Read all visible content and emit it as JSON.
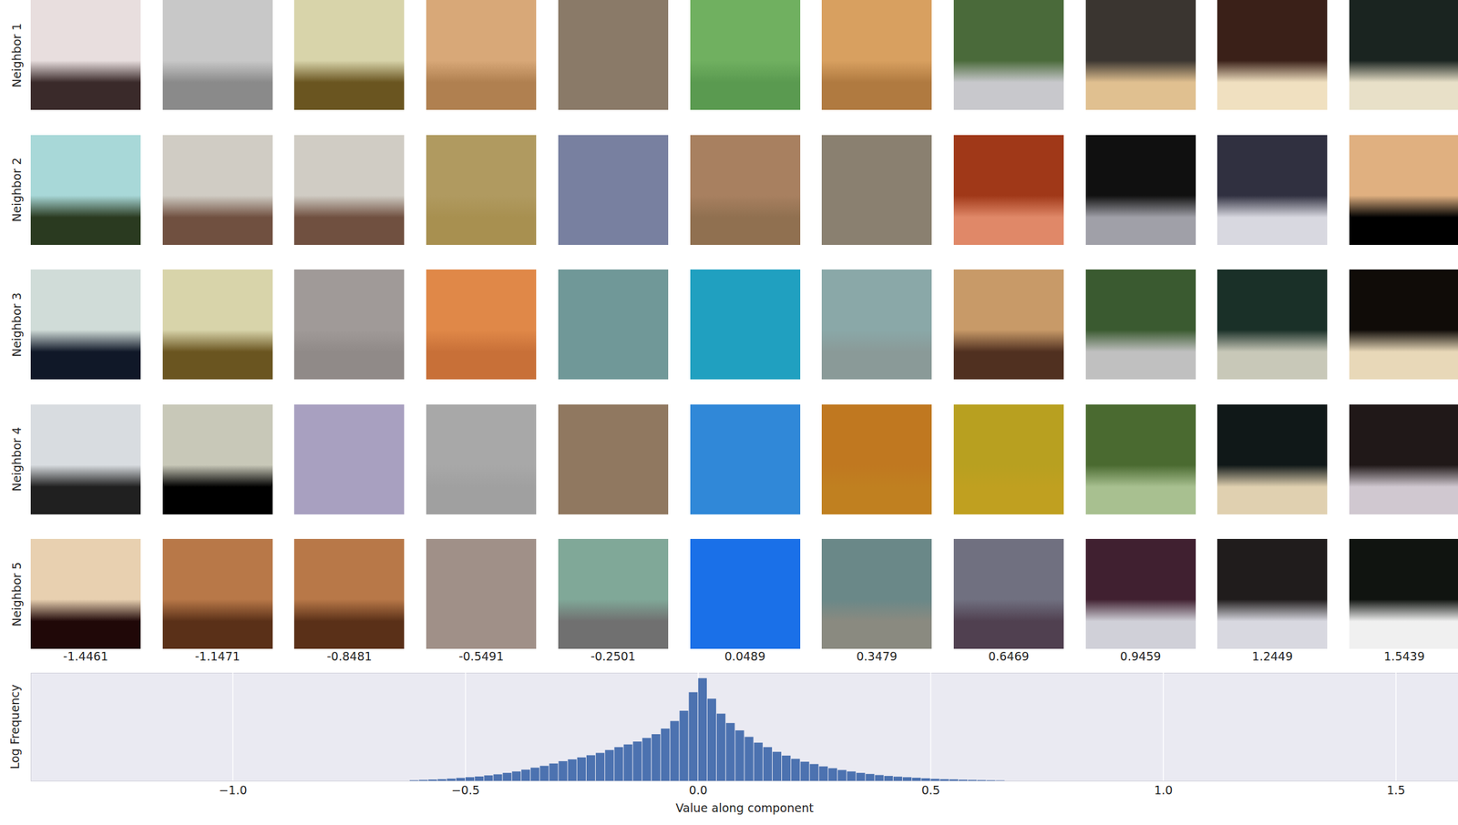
{
  "chart_data": {
    "type": "histogram",
    "xlabel": "Value along component",
    "ylabel": "Log Frequency",
    "bins": [
      -0.62,
      -0.6,
      -0.58,
      -0.56,
      -0.54,
      -0.52,
      -0.5,
      -0.48,
      -0.46,
      -0.44,
      -0.42,
      -0.4,
      -0.38,
      -0.36,
      -0.34,
      -0.32,
      -0.3,
      -0.28,
      -0.26,
      -0.24,
      -0.22,
      -0.2,
      -0.18,
      -0.16,
      -0.14,
      -0.12,
      -0.1,
      -0.08,
      -0.06,
      -0.04,
      -0.02,
      0,
      0.02,
      0.04,
      0.06,
      0.08,
      0.1,
      0.12,
      0.14,
      0.16,
      0.18,
      0.2,
      0.22,
      0.24,
      0.26,
      0.28,
      0.3,
      0.32,
      0.34,
      0.36,
      0.38,
      0.4,
      0.42,
      0.44,
      0.46,
      0.48,
      0.5,
      0.52,
      0.54,
      0.56,
      0.58,
      0.6,
      0.62,
      0.64,
      0.66
    ],
    "values": [
      0.03,
      0.05,
      0.07,
      0.09,
      0.12,
      0.16,
      0.2,
      0.24,
      0.3,
      0.36,
      0.44,
      0.52,
      0.62,
      0.73,
      0.83,
      0.96,
      1.09,
      1.19,
      1.3,
      1.42,
      1.55,
      1.71,
      1.87,
      2.02,
      2.18,
      2.38,
      2.59,
      2.9,
      3.32,
      3.89,
      4.92,
      5.7,
      4.56,
      3.73,
      3.21,
      2.8,
      2.44,
      2.12,
      1.87,
      1.61,
      1.4,
      1.22,
      1.06,
      0.93,
      0.8,
      0.7,
      0.6,
      0.52,
      0.44,
      0.38,
      0.32,
      0.27,
      0.23,
      0.2,
      0.17,
      0.14,
      0.11,
      0.09,
      0.08,
      0.06,
      0.05,
      0.04,
      0.03,
      0.02
    ],
    "color": "#4c72b0",
    "xlim": [
      -1.434,
      1.634
    ],
    "xticks": [
      {
        "value": -1,
        "label": "−1.0"
      },
      {
        "value": -0.5,
        "label": "−0.5"
      },
      {
        "value": 0,
        "label": "0.0"
      },
      {
        "value": 0.5,
        "label": "0.5"
      },
      {
        "value": 1,
        "label": "1.0"
      },
      {
        "value": 1.5,
        "label": "1.5"
      }
    ],
    "ylim": [
      0,
      6
    ],
    "tick_labels": "x",
    "grid": true
  },
  "patch_grid": {
    "row_labels": [
      "Neighbor 1",
      "Neighbor 2",
      "Neighbor 3",
      "Neighbor 4",
      "Neighbor 5"
    ],
    "column_values": [
      -1.4461,
      -1.1471,
      -0.8481,
      -0.5491,
      -0.2501,
      0.0489,
      0.3479,
      0.6469,
      0.9459,
      1.2449,
      1.5439
    ],
    "patches": [
      [
        {
          "top": "#e8dede",
          "bottom": "#3a2a2a"
        },
        {
          "top": "#c8c8c8",
          "bottom": "#8a8a8a"
        },
        {
          "top": "#d8d4aa",
          "bottom": "#6a5520"
        },
        {
          "top": "#d8a878",
          "bottom": "#b08050"
        },
        {
          "top": "#8a7a68",
          "bottom": "#8a7a68"
        },
        {
          "top": "#70b060",
          "bottom": "#5a9a50"
        },
        {
          "top": "#d8a060",
          "bottom": "#b07a40"
        },
        {
          "top": "#4a6a3a",
          "bottom": "#c8c8cc"
        },
        {
          "top": "#3a3530",
          "bottom": "#e0c090"
        },
        {
          "top": "#3a2018",
          "bottom": "#f0e0c0"
        },
        {
          "top": "#1a2420",
          "bottom": "#e8e0c8"
        }
      ],
      [
        {
          "top": "#a8d8d8",
          "bottom": "#2a3a20"
        },
        {
          "top": "#d0ccc4",
          "bottom": "#705040"
        },
        {
          "top": "#d0ccc4",
          "bottom": "#705040"
        },
        {
          "top": "#b09a60",
          "bottom": "#a89050"
        },
        {
          "top": "#7880a0",
          "bottom": "#7880a0"
        },
        {
          "top": "#a88060",
          "bottom": "#907050"
        },
        {
          "top": "#8a8070",
          "bottom": "#8a8070"
        },
        {
          "top": "#a03818",
          "bottom": "#e08868"
        },
        {
          "top": "#101010",
          "bottom": "#a0a0a8"
        },
        {
          "top": "#303040",
          "bottom": "#d8d8e0"
        },
        {
          "top": "#e0b080",
          "bottom": "#000000"
        }
      ],
      [
        {
          "top": "#d0dcd8",
          "bottom": "#101828"
        },
        {
          "top": "#d8d4aa",
          "bottom": "#6a5520"
        },
        {
          "top": "#a09a98",
          "bottom": "#908a88"
        },
        {
          "top": "#e08848",
          "bottom": "#c87038"
        },
        {
          "top": "#709898",
          "bottom": "#709898"
        },
        {
          "top": "#20a0c0",
          "bottom": "#20a0c0"
        },
        {
          "top": "#8aa8a8",
          "bottom": "#8a9a98"
        },
        {
          "top": "#c89a68",
          "bottom": "#503020"
        },
        {
          "top": "#3a5a30",
          "bottom": "#c0c0c0"
        },
        {
          "top": "#1a3028",
          "bottom": "#c8c8b8"
        },
        {
          "top": "#100c08",
          "bottom": "#e8d8b8"
        }
      ],
      [
        {
          "top": "#d8dce0",
          "bottom": "#202020"
        },
        {
          "top": "#c8c8b8",
          "bottom": "#000000"
        },
        {
          "top": "#a8a0c0",
          "bottom": "#a8a0c0"
        },
        {
          "top": "#a8a8a8",
          "bottom": "#a0a0a0"
        },
        {
          "top": "#907860",
          "bottom": "#907860"
        },
        {
          "top": "#3088d8",
          "bottom": "#3088d8"
        },
        {
          "top": "#c07820",
          "bottom": "#c08020"
        },
        {
          "top": "#b8a020",
          "bottom": "#c0a020"
        },
        {
          "top": "#4a6a30",
          "bottom": "#a8c090"
        },
        {
          "top": "#101818",
          "bottom": "#e0d0b0"
        },
        {
          "top": "#201818",
          "bottom": "#d0c8d0"
        }
      ],
      [
        {
          "top": "#e8d0b0",
          "bottom": "#200808"
        },
        {
          "top": "#b87848",
          "bottom": "#5a3018"
        },
        {
          "top": "#b87848",
          "bottom": "#5a3018"
        },
        {
          "top": "#a09088",
          "bottom": "#a09088"
        },
        {
          "top": "#80a898",
          "bottom": "#707070"
        },
        {
          "top": "#1a70e8",
          "bottom": "#1a70e8"
        },
        {
          "top": "#6a8888",
          "bottom": "#8a8a80"
        },
        {
          "top": "#707080",
          "bottom": "#504050"
        },
        {
          "top": "#402030",
          "bottom": "#d0d0d8"
        },
        {
          "top": "#201c1c",
          "bottom": "#d8d8e0"
        },
        {
          "top": "#101410",
          "bottom": "#f0f0f0"
        }
      ]
    ]
  }
}
